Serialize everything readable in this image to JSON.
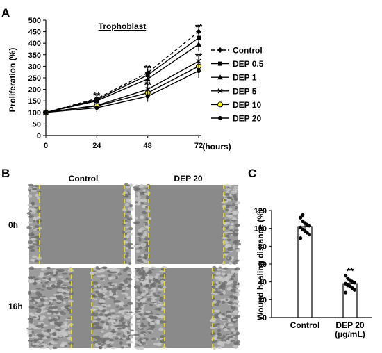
{
  "panels": {
    "a": "A",
    "b": "B",
    "c": "C"
  },
  "chart_data": [
    {
      "type": "line",
      "title": "Trophoblast",
      "xlabel": "(hours)",
      "ylabel": "Proliferation (%)",
      "x": [
        0,
        24,
        48,
        72
      ],
      "xlim": [
        0,
        72
      ],
      "ylim": [
        0,
        500
      ],
      "yticks": [
        0,
        50,
        100,
        150,
        200,
        250,
        300,
        350,
        400,
        450,
        500
      ],
      "xticks": [
        0,
        24,
        48,
        72
      ],
      "legend_position": "right",
      "grid": false,
      "series": [
        {
          "name": "Control",
          "marker": "diamond",
          "dashed": true,
          "values": [
            100,
            160,
            272,
            450
          ]
        },
        {
          "name": "DEP 0.5",
          "marker": "square",
          "dashed": false,
          "values": [
            100,
            155,
            262,
            423
          ]
        },
        {
          "name": "DEP 1",
          "marker": "triangle",
          "dashed": false,
          "values": [
            100,
            150,
            245,
            395
          ]
        },
        {
          "name": "DEP 5",
          "marker": "x",
          "dashed": false,
          "values": [
            100,
            130,
            200,
            322
          ]
        },
        {
          "name": "DEP 10",
          "marker": "circle-yellow",
          "dashed": false,
          "values": [
            100,
            128,
            185,
            300
          ]
        },
        {
          "name": "DEP 20",
          "marker": "circle",
          "dashed": false,
          "values": [
            100,
            120,
            170,
            280
          ]
        }
      ],
      "annotations": [
        {
          "text": "**",
          "x": 24,
          "y": 172
        },
        {
          "text": "**",
          "x": 48,
          "y": 290
        },
        {
          "text": "**",
          "x": 48,
          "y": 218
        },
        {
          "text": "**",
          "x": 72,
          "y": 468
        },
        {
          "text": "**",
          "x": 72,
          "y": 342
        }
      ]
    },
    {
      "type": "bar",
      "categories": [
        "Control",
        "DEP 20\n(µg/mL)"
      ],
      "values": [
        102,
        38
      ],
      "errors": [
        5,
        4
      ],
      "ylabel": "Wound healing distance (%)",
      "ylim": [
        0,
        120
      ],
      "yticks": [
        0,
        20,
        40,
        60,
        80,
        100,
        120
      ],
      "points": [
        [
          112,
          108,
          106,
          104,
          103,
          101,
          99,
          97,
          95,
          93,
          89,
          115
        ],
        [
          47,
          44,
          42,
          40,
          39,
          38,
          37,
          35,
          33,
          31,
          28,
          36
        ]
      ],
      "annotations": [
        {
          "text": "**",
          "category": 1,
          "y": 52
        }
      ]
    }
  ],
  "micrographs": {
    "columns": [
      "Control",
      "DEP 20"
    ],
    "rows": [
      "0h",
      "16h"
    ],
    "line_color": "#f2e600"
  }
}
